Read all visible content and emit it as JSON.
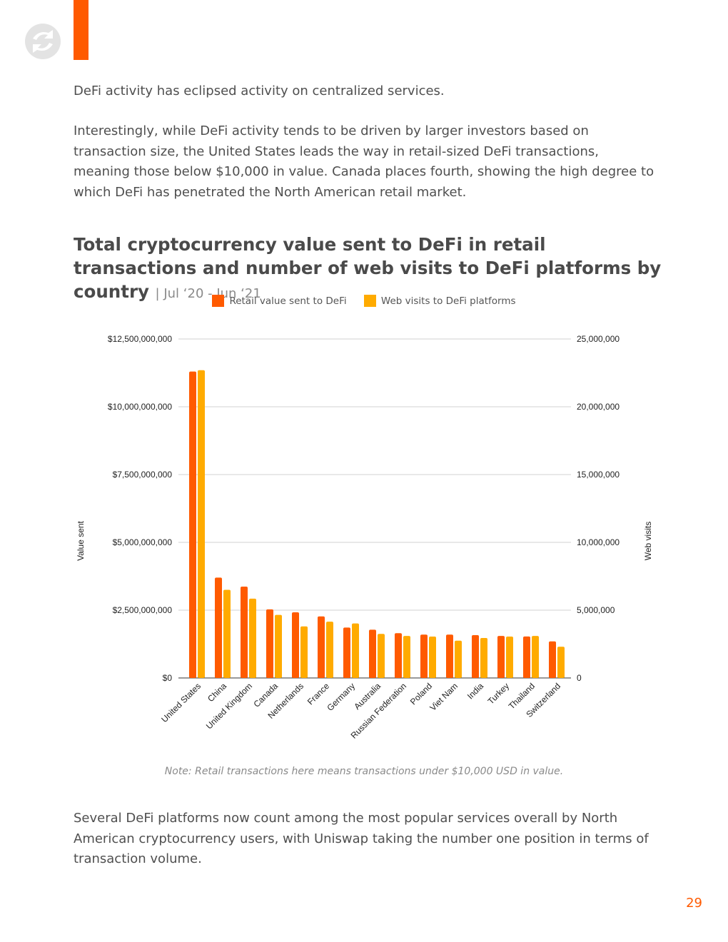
{
  "colors": {
    "accent": "#ff5a00",
    "series_retail": "#ff5a00",
    "series_web": "#ffab00",
    "text": "#4a4a4a",
    "grid": "#d0d0d0",
    "logo": "#e3e3e3"
  },
  "header": {
    "logo_icon": "chainalysis-logo-icon"
  },
  "body": {
    "para1": "DeFi activity has eclipsed activity on centralized services.",
    "para2": "Interestingly, while DeFi activity tends to be driven by larger investors based on transaction size, the United States leads the way in retail-sized DeFi transactions, meaning those below $10,000 in value. Canada places fourth, showing the high degree to which DeFi has penetrated the North American retail market.",
    "para3": "Several DeFi platforms now count among the most popular services overall by North American cryptocurrency users, with Uniswap taking the number one position in terms of transaction volume."
  },
  "chart_data": {
    "type": "bar",
    "title": "Total cryptocurrency value sent to DeFi in retail transactions and number of web visits to DeFi platforms by country",
    "subtitle": "| Jul ‘20 - Jun ‘21",
    "ylabel": "Value sent",
    "y2label": "Web visits",
    "ylim": [
      0,
      12500000000
    ],
    "y2lim": [
      0,
      25000000
    ],
    "y_ticks": [
      "$0",
      "$2,500,000,000",
      "$5,000,000,000",
      "$7,500,000,000",
      "$10,000,000,000",
      "$12,500,000,000"
    ],
    "y2_ticks": [
      "0",
      "5,000,000",
      "10,000,000",
      "15,000,000",
      "20,000,000",
      "25,000,000"
    ],
    "grid": true,
    "legend_position": "top",
    "categories": [
      "United States",
      "China",
      "United Kingdom",
      "Canada",
      "Netherlands",
      "France",
      "Germany",
      "Australia",
      "Russian Federation",
      "Poland",
      "Viet Nam",
      "India",
      "Turkey",
      "Thailand",
      "Switzerland"
    ],
    "series": [
      {
        "name": "Retail value sent to DeFi",
        "axis": "left",
        "values": [
          11300000000,
          3700000000,
          3370000000,
          2530000000,
          2420000000,
          2270000000,
          1860000000,
          1780000000,
          1650000000,
          1600000000,
          1600000000,
          1580000000,
          1550000000,
          1530000000,
          1350000000
        ]
      },
      {
        "name": "Web visits to DeFi platforms",
        "axis": "right",
        "values": [
          22700000,
          6500000,
          5850000,
          4650000,
          3800000,
          4150000,
          4020000,
          3250000,
          3100000,
          3050000,
          2750000,
          2950000,
          3050000,
          3100000,
          2300000
        ]
      }
    ],
    "note": "Note: Retail transactions here means transactions under $10,000 USD in value."
  },
  "footer": {
    "page_number": "29"
  }
}
